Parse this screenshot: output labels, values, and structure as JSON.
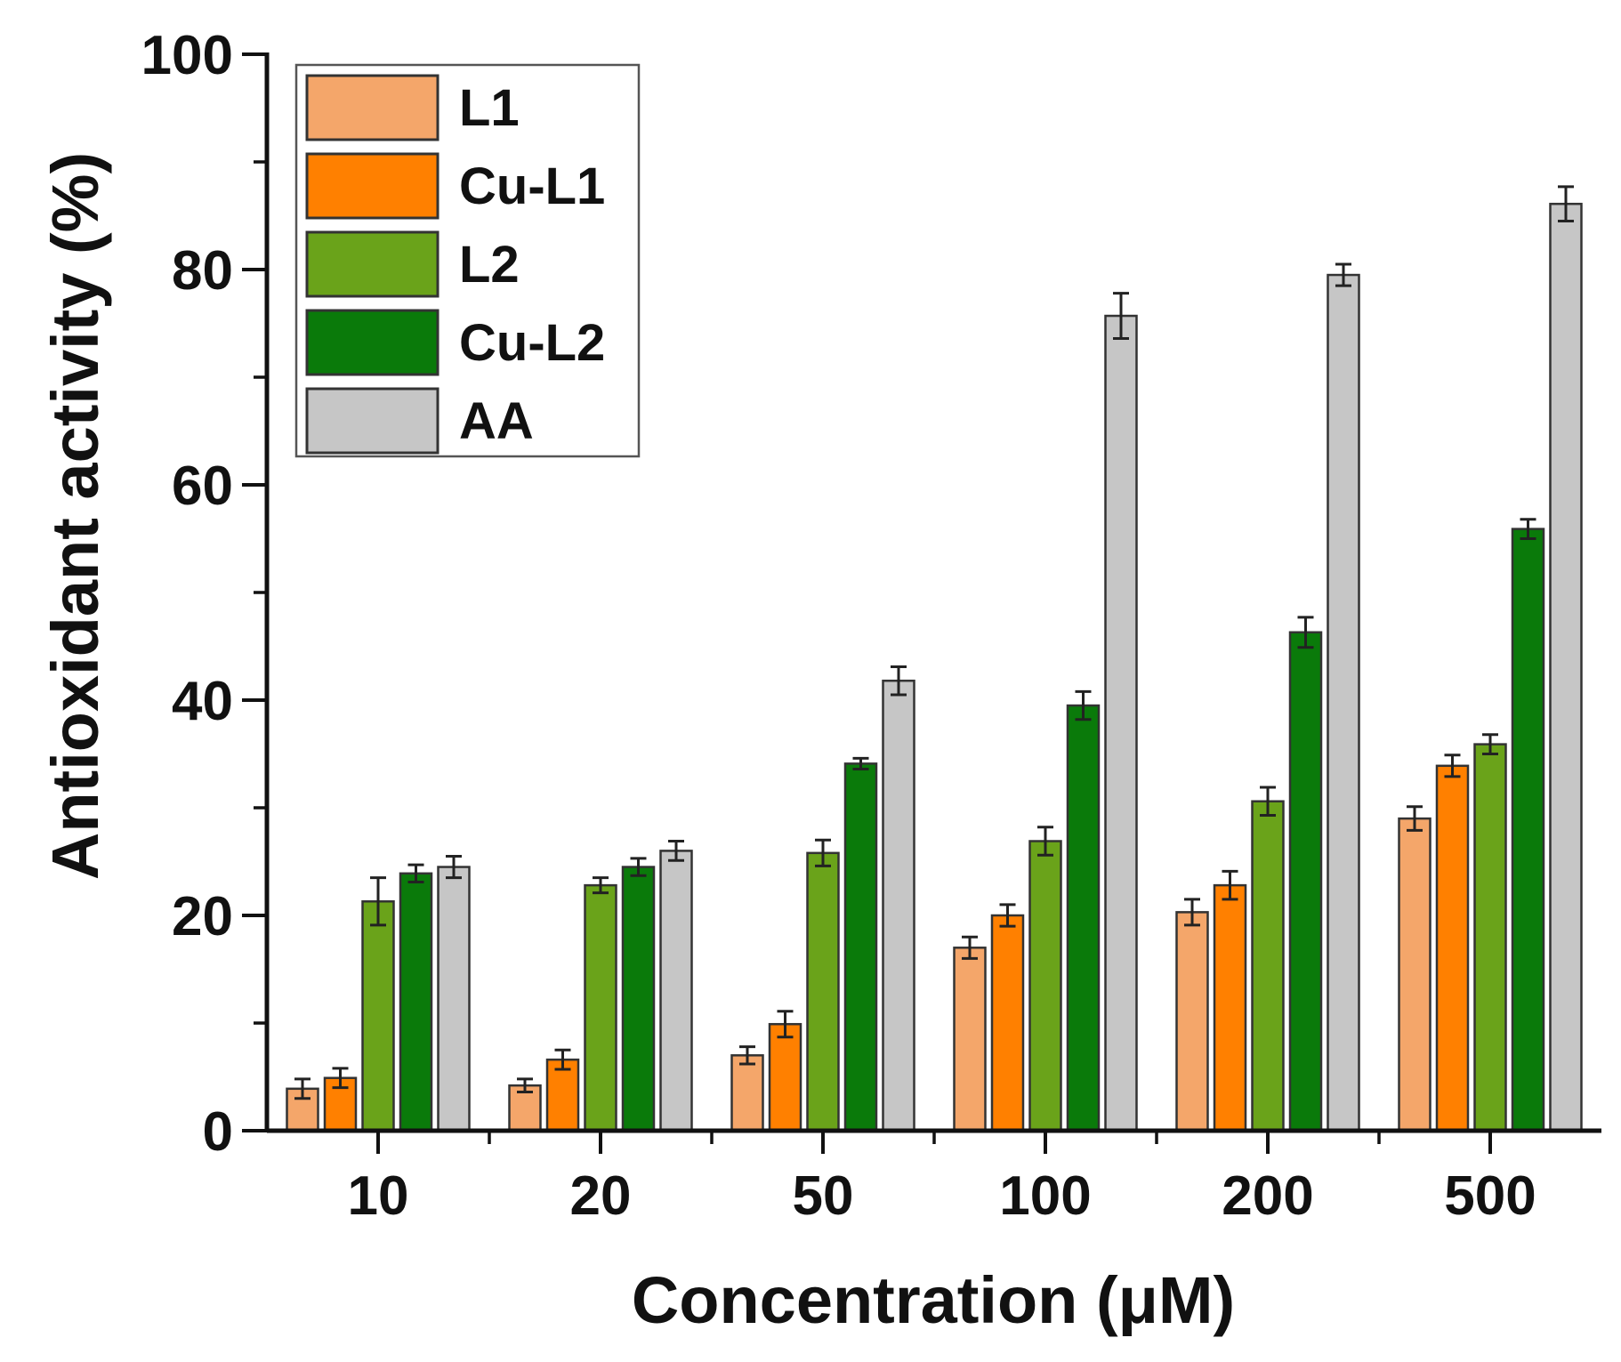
{
  "chart_data": {
    "type": "bar",
    "title": "",
    "xlabel": "Concentration (μM)",
    "ylabel": "Antioxidant activity (%)",
    "ylim": [
      0,
      100
    ],
    "yticks": [
      0,
      20,
      40,
      60,
      80,
      100
    ],
    "grid": false,
    "legend_position": "top-left",
    "categories": [
      "10",
      "20",
      "50",
      "100",
      "200",
      "500"
    ],
    "series": [
      {
        "name": "L1",
        "color": "#F4A66A",
        "values": [
          3.9,
          4.2,
          7.0,
          17.0,
          20.3,
          29.0
        ],
        "errors": [
          0.9,
          0.6,
          0.8,
          1.0,
          1.2,
          1.1
        ]
      },
      {
        "name": "Cu-L1",
        "color": "#FF8000",
        "values": [
          4.9,
          6.6,
          9.9,
          20.0,
          22.8,
          33.9
        ],
        "errors": [
          0.9,
          0.9,
          1.2,
          1.0,
          1.3,
          1.0
        ]
      },
      {
        "name": "L2",
        "color": "#6AA31A",
        "values": [
          21.3,
          22.8,
          25.8,
          26.9,
          30.6,
          35.9
        ],
        "errors": [
          2.2,
          0.7,
          1.2,
          1.3,
          1.3,
          0.9
        ]
      },
      {
        "name": "Cu-L2",
        "color": "#0A7A0A",
        "values": [
          23.9,
          24.5,
          34.1,
          39.5,
          46.3,
          55.9
        ],
        "errors": [
          0.8,
          0.8,
          0.5,
          1.3,
          1.4,
          0.9
        ]
      },
      {
        "name": "AA",
        "color": "#C6C6C6",
        "values": [
          24.5,
          26.0,
          41.8,
          75.7,
          79.5,
          86.1
        ],
        "errors": [
          1.0,
          0.9,
          1.3,
          2.1,
          1.0,
          1.6
        ]
      }
    ]
  }
}
